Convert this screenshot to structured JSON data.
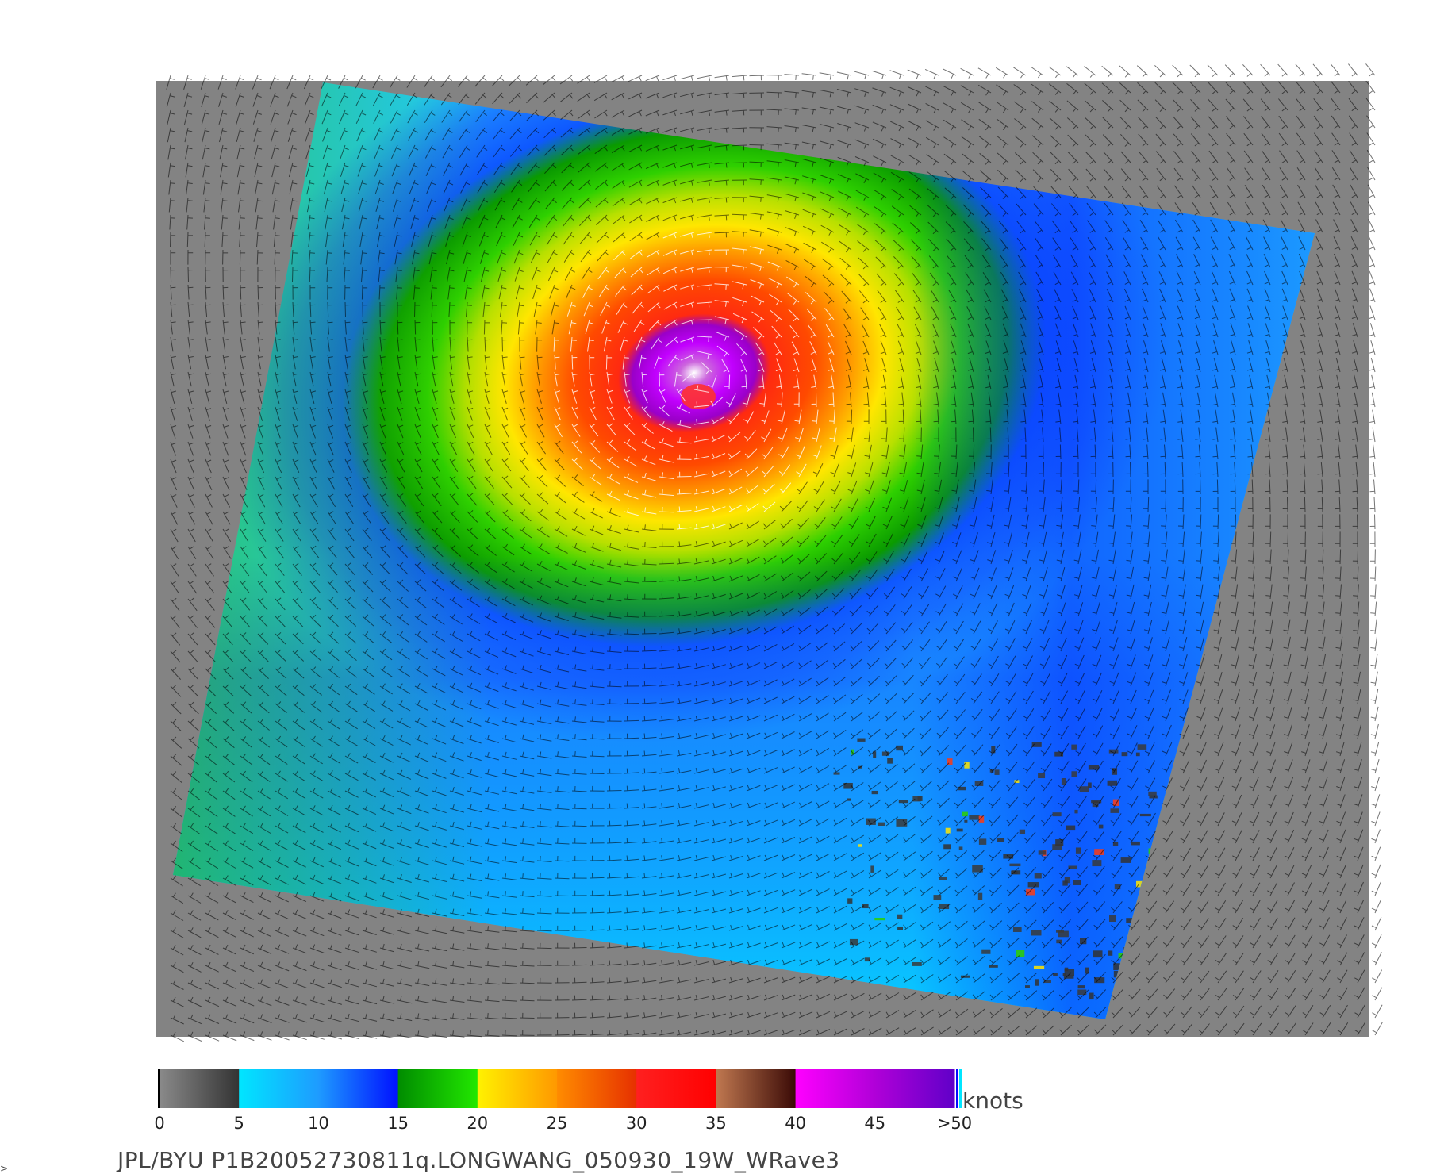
{
  "colorbar": {
    "unit": "knots",
    "ticks": [
      "0",
      "5",
      "10",
      "15",
      "20",
      "25",
      "30",
      "35",
      "40",
      "45",
      ">50"
    ],
    "segments": [
      {
        "from": 0,
        "to": 5,
        "colors": [
          "#8a8a8a",
          "#333333"
        ]
      },
      {
        "from": 5,
        "to": 10,
        "colors": [
          "#00e6ff",
          "#1e9bff"
        ]
      },
      {
        "from": 10,
        "to": 15,
        "colors": [
          "#1e9bff",
          "#0010ff"
        ]
      },
      {
        "from": 15,
        "to": 20,
        "colors": [
          "#008c00",
          "#22e800"
        ]
      },
      {
        "from": 20,
        "to": 25,
        "colors": [
          "#fff200",
          "#ff9800"
        ]
      },
      {
        "from": 25,
        "to": 30,
        "colors": [
          "#ff8c00",
          "#e63000"
        ]
      },
      {
        "from": 30,
        "to": 35,
        "colors": [
          "#ff2020",
          "#ff0000"
        ]
      },
      {
        "from": 35,
        "to": 40,
        "colors": [
          "#c07850",
          "#3a0a06"
        ]
      },
      {
        "from": 40,
        "to": 45,
        "colors": [
          "#ff00ff",
          "#b000d8"
        ]
      },
      {
        "from": 45,
        "to": 50,
        "colors": [
          "#b000d8",
          "#6000c8"
        ]
      }
    ]
  },
  "caption": "JPL/BYU  P1B20052730811q.LONGWANG_050930_19W_WRave3",
  "corner_mark": ">"
}
